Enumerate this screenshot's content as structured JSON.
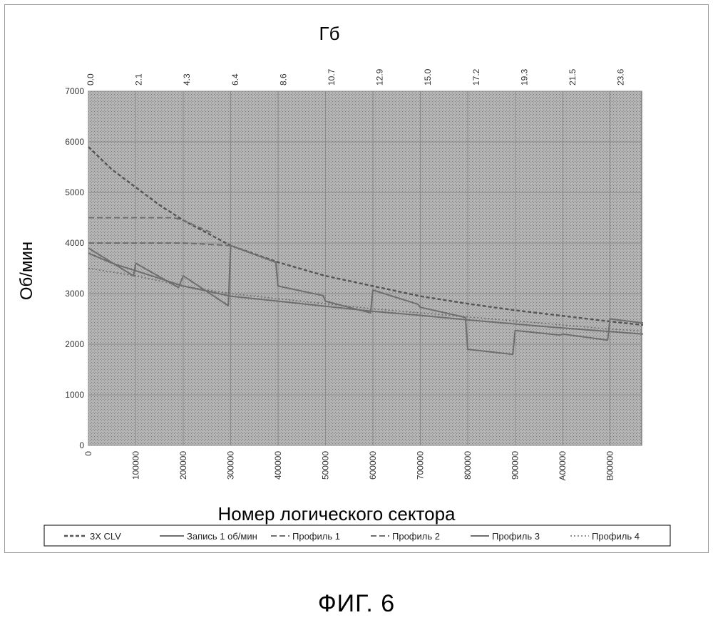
{
  "figure_caption": "ФИГ. 6",
  "chart_data": {
    "type": "line",
    "top_axis_label": "Гб",
    "top_ticks": [
      "0.0",
      "2.1",
      "4.3",
      "6.4",
      "8.6",
      "10.7",
      "12.9",
      "15.0",
      "17.2",
      "19.3",
      "21.5",
      "23.6"
    ],
    "xlabel": "Номер логического сектора",
    "ylabel": "Об/мин",
    "x_ticks": [
      "0",
      "100000",
      "200000",
      "300000",
      "400000",
      "500000",
      "600000",
      "700000",
      "800000",
      "900000",
      "A00000",
      "B00000"
    ],
    "y_ticks": [
      "0",
      "1000",
      "2000",
      "3000",
      "4000",
      "5000",
      "6000",
      "7000"
    ],
    "xlim": [
      0,
      11.7
    ],
    "ylim": [
      0,
      7000
    ],
    "grid": true,
    "legend_position": "bottom",
    "colors": {
      "plot_bg": "#a8a8a8",
      "grid": "#8a8a8a",
      "clv": "#555555",
      "profile": "#6e6e6e"
    },
    "series": [
      {
        "name": "3X CLV",
        "style": "dashed",
        "x": [
          0,
          0.5,
          1,
          1.5,
          2,
          3,
          4,
          5,
          6,
          7,
          8,
          9,
          10,
          11,
          11.7
        ],
        "y": [
          5900,
          5450,
          5100,
          4750,
          4450,
          3950,
          3620,
          3350,
          3150,
          2950,
          2800,
          2670,
          2560,
          2450,
          2380
        ]
      },
      {
        "name": "Запись 1 об/мин",
        "style": "solid",
        "x": [
          0,
          0.5,
          1,
          1.5,
          2,
          2.5,
          3,
          4,
          5,
          6,
          7,
          8,
          9,
          10,
          11,
          11.7
        ],
        "y": [
          3800,
          3600,
          3450,
          3300,
          3150,
          3050,
          2950,
          2850,
          2750,
          2650,
          2570,
          2480,
          2400,
          2320,
          2250,
          2200
        ]
      },
      {
        "name": "Профиль 1",
        "style": "dash",
        "x": [
          0,
          1,
          1.8,
          2,
          2.6
        ],
        "y": [
          4500,
          4500,
          4500,
          4450,
          4200
        ]
      },
      {
        "name": "Профиль 2",
        "style": "dash",
        "x": [
          0,
          1,
          2,
          3
        ],
        "y": [
          4000,
          4000,
          4000,
          3950
        ]
      },
      {
        "name": "Профиль 3",
        "style": "solid",
        "x": [
          0,
          0.95,
          1,
          1.9,
          2,
          2.95,
          3,
          3.95,
          4,
          4.95,
          5,
          5.95,
          6,
          6.95,
          7,
          7.95,
          8,
          8.95,
          9,
          9.95,
          10,
          10.95,
          11,
          11.7
        ],
        "y": [
          3900,
          3350,
          3600,
          3120,
          3350,
          2760,
          3950,
          3620,
          3150,
          2960,
          2850,
          2620,
          3070,
          2790,
          2730,
          2530,
          1900,
          1800,
          2270,
          2180,
          2200,
          2080,
          2500,
          2420
        ]
      },
      {
        "name": "Профиль 4",
        "style": "dotted",
        "x": [
          0,
          1,
          2,
          3,
          4,
          5,
          6,
          7,
          8,
          9,
          10,
          11,
          11.7
        ],
        "y": [
          3500,
          3350,
          3150,
          3000,
          2900,
          2800,
          2700,
          2620,
          2540,
          2460,
          2380,
          2300,
          2260
        ]
      }
    ]
  }
}
